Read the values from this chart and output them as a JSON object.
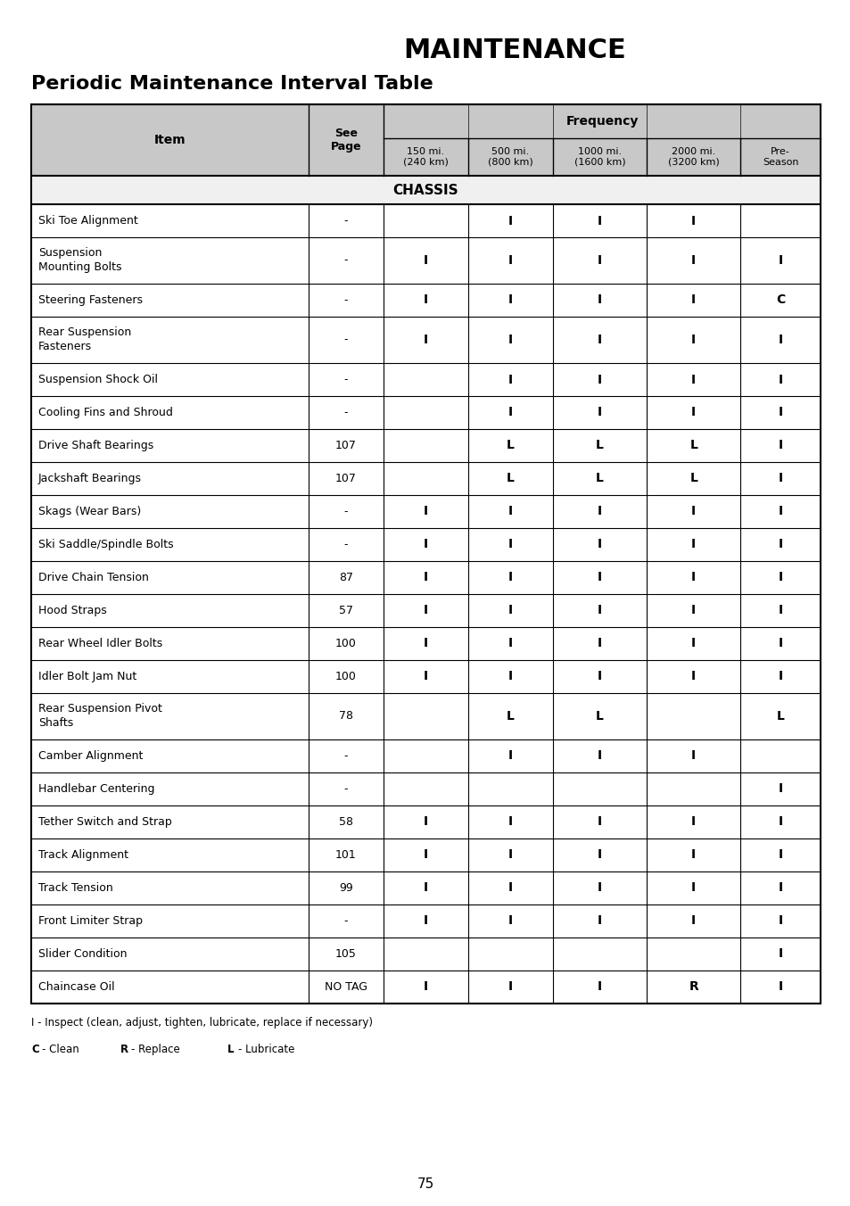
{
  "title": "MAINTENANCE",
  "subtitle": "Periodic Maintenance Interval Table",
  "header_row1": [
    "",
    "See\nPage",
    "Frequency"
  ],
  "header_row2": [
    "Item",
    "",
    "150 mi.\n(240 km)",
    "500 mi.\n(800 km)",
    "1000 mi.\n(1600 km)",
    "2000 mi.\n(3200 km)",
    "Pre-\nSeason"
  ],
  "section_chassis": "CHASSIS",
  "rows": [
    [
      "Ski Toe Alignment",
      "-",
      "",
      "I",
      "I",
      "I",
      ""
    ],
    [
      "Suspension\nMounting Bolts",
      "-",
      "I",
      "I",
      "I",
      "I",
      "I"
    ],
    [
      "Steering Fasteners",
      "-",
      "I",
      "I",
      "I",
      "I",
      "C"
    ],
    [
      "Rear Suspension\nFasteners",
      "-",
      "I",
      "I",
      "I",
      "I",
      "I"
    ],
    [
      "Suspension Shock Oil",
      "-",
      "",
      "I",
      "I",
      "I",
      "I"
    ],
    [
      "Cooling Fins and Shroud",
      "-",
      "",
      "I",
      "I",
      "I",
      "I"
    ],
    [
      "Drive Shaft Bearings",
      "107",
      "",
      "L",
      "L",
      "L",
      "I"
    ],
    [
      "Jackshaft Bearings",
      "107",
      "",
      "L",
      "L",
      "L",
      "I"
    ],
    [
      "Skags (Wear Bars)",
      "-",
      "I",
      "I",
      "I",
      "I",
      "I"
    ],
    [
      "Ski Saddle/Spindle Bolts",
      "-",
      "I",
      "I",
      "I",
      "I",
      "I"
    ],
    [
      "Drive Chain Tension",
      "87",
      "I",
      "I",
      "I",
      "I",
      "I"
    ],
    [
      "Hood Straps",
      "57",
      "I",
      "I",
      "I",
      "I",
      "I"
    ],
    [
      "Rear Wheel Idler Bolts",
      "100",
      "I",
      "I",
      "I",
      "I",
      "I"
    ],
    [
      "Idler Bolt Jam Nut",
      "100",
      "I",
      "I",
      "I",
      "I",
      "I"
    ],
    [
      "Rear Suspension Pivot\nShafts",
      "78",
      "",
      "L",
      "L",
      "",
      "L"
    ],
    [
      "Camber Alignment",
      "-",
      "",
      "I",
      "I",
      "I",
      ""
    ],
    [
      "Handlebar Centering",
      "-",
      "",
      "",
      "",
      "",
      "I"
    ],
    [
      "Tether Switch and Strap",
      "58",
      "I",
      "I",
      "I",
      "I",
      "I"
    ],
    [
      "Track Alignment",
      "101",
      "I",
      "I",
      "I",
      "I",
      "I"
    ],
    [
      "Track Tension",
      "99",
      "I",
      "I",
      "I",
      "I",
      "I"
    ],
    [
      "Front Limiter Strap",
      "-",
      "I",
      "I",
      "I",
      "I",
      "I"
    ],
    [
      "Slider Condition",
      "105",
      "",
      "",
      "",
      "",
      "I"
    ],
    [
      "Chaincase Oil",
      "NO TAG",
      "I",
      "I",
      "I",
      "R",
      "I"
    ]
  ],
  "footnote_lines": [
    "I - Inspect (clean, adjust, tighten, lubricate, replace if necessary)",
    "C - Clean          R - Replace          L - Lubricate"
  ],
  "page_number": "75",
  "bg_color": "#ffffff",
  "header_bg": "#d0d0d0",
  "grid_color": "#000000",
  "bold_entries": [
    "I",
    "L",
    "R",
    "C"
  ]
}
